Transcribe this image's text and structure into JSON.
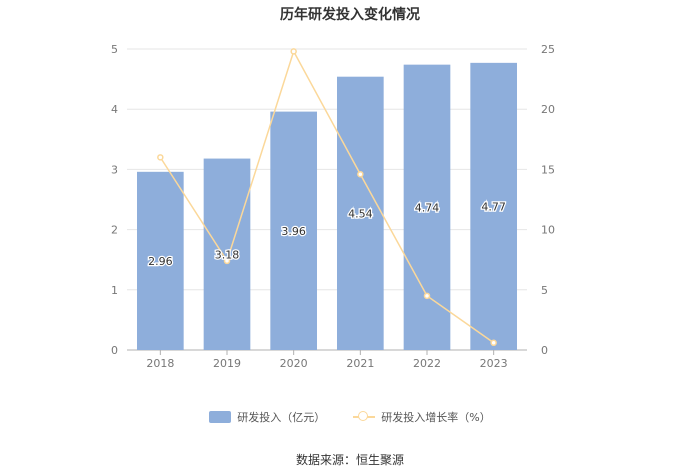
{
  "chart_data": {
    "type": "bar",
    "title": "历年研发投入变化情况",
    "categories": [
      "2018",
      "2019",
      "2020",
      "2021",
      "2022",
      "2023"
    ],
    "series": [
      {
        "name": "研发投入（亿元）",
        "type": "bar",
        "axis": "left",
        "color": "#8eaedb",
        "values": [
          2.96,
          3.18,
          3.96,
          4.54,
          4.74,
          4.77
        ],
        "labels": [
          "2.96",
          "3.18",
          "3.96",
          "4.54",
          "4.74",
          "4.77"
        ]
      },
      {
        "name": "研发投入增长率（%）",
        "type": "line",
        "axis": "right",
        "color": "#fbd89a",
        "values": [
          16.0,
          7.4,
          24.8,
          14.6,
          4.5,
          0.6
        ]
      }
    ],
    "y_left": {
      "ylim": [
        0,
        5
      ],
      "ticks": [
        "0",
        "1",
        "2",
        "3",
        "4",
        "5"
      ]
    },
    "y_right": {
      "ylim": [
        0,
        25
      ],
      "ticks": [
        "0",
        "5",
        "10",
        "15",
        "20",
        "25"
      ]
    },
    "grid": true,
    "legend_position": "bottom"
  },
  "source_text": "数据来源：恒生聚源"
}
